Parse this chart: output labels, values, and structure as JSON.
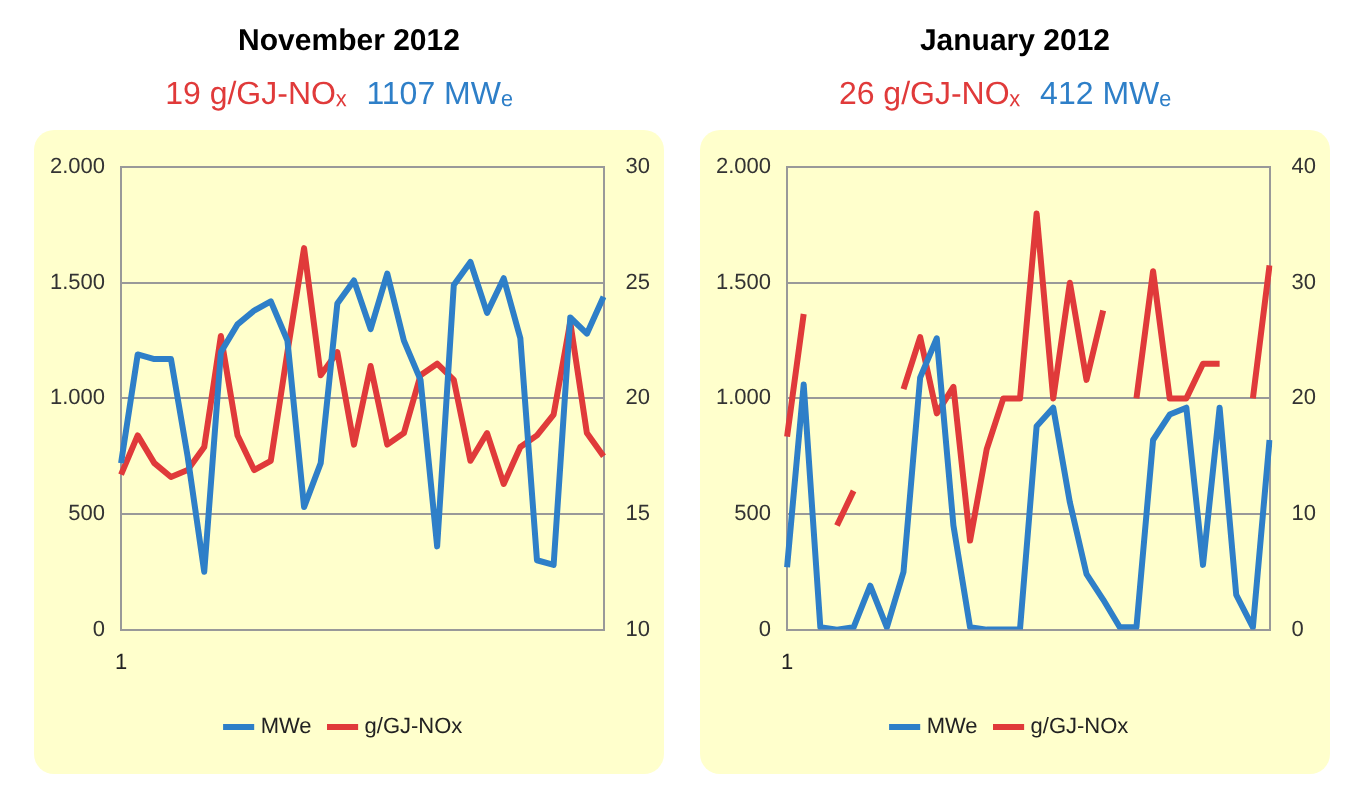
{
  "chart_data": [
    {
      "type": "line",
      "title": "November 2012",
      "annotations": [
        "19 g/GJ-NOₓ",
        "1107 MWₑ"
      ],
      "categories": [
        "1",
        null,
        null,
        null,
        null,
        null,
        null,
        null,
        null,
        null,
        null,
        null,
        null,
        null,
        null,
        null,
        null,
        null,
        null,
        null,
        null,
        null,
        null,
        null,
        null,
        null,
        null,
        null,
        null,
        null
      ],
      "series": [
        {
          "name": "MWe",
          "color": "#2e7fc8",
          "values": [
            720,
            1190,
            1170,
            1170,
            750,
            250,
            1200,
            1320,
            1380,
            1420,
            1250,
            530,
            720,
            1410,
            1510,
            1300,
            1540,
            1250,
            1080,
            360,
            1490,
            1590,
            1370,
            1520,
            1260,
            300,
            280,
            1350,
            1280,
            1440
          ]
        },
        {
          "name": "g/GJ-NOx",
          "color": "#e03a3a",
          "axis": "y2",
          "values": [
            16.7,
            18.4,
            17.2,
            16.6,
            16.9,
            17.9,
            22.7,
            18.4,
            16.9,
            17.3,
            22,
            26.5,
            21,
            22,
            18,
            21.4,
            18,
            18.5,
            21,
            21.5,
            20.8,
            17.3,
            18.5,
            16.3,
            17.9,
            18.4,
            19.3,
            23.3,
            18.5,
            17.5
          ]
        }
      ],
      "ylim": [
        0,
        2000
      ],
      "yticks": [
        0,
        {
          "value": 500,
          "label": "500"
        },
        {
          "value": 1000,
          "label": "1.000"
        },
        {
          "value": 1500,
          "label": "1.500"
        },
        {
          "value": 2000,
          "label": "2.000"
        }
      ],
      "y2lim": [
        10,
        30
      ],
      "y2ticks": [
        10,
        15,
        20,
        25,
        30
      ],
      "grid": "y",
      "legend": "bottom",
      "marker": "none"
    },
    {
      "type": "line",
      "title": "January 2012",
      "annotations": [
        "26  g/GJ-NOₓ",
        "412 MWₑ"
      ],
      "categories": [
        "1",
        null,
        null,
        null,
        null,
        null,
        null,
        null,
        null,
        null,
        null,
        null,
        null,
        null,
        null,
        null,
        null,
        null,
        null,
        null,
        null,
        null,
        null,
        null,
        null,
        null,
        null,
        null,
        null,
        null
      ],
      "series": [
        {
          "name": "MWe",
          "color": "#2e7fc8",
          "values": [
            270,
            1060,
            10,
            0,
            10,
            190,
            10,
            250,
            1090,
            1260,
            450,
            10,
            0,
            0,
            0,
            880,
            960,
            550,
            240,
            130,
            10,
            10,
            820,
            930,
            960,
            280,
            960,
            150,
            10,
            820
          ]
        },
        {
          "name": "g/GJ-NOx",
          "color": "#e03a3a",
          "axis": "y2",
          "values": [
            16.7,
            27.3,
            null,
            9,
            12,
            null,
            null,
            20.8,
            25.3,
            18.7,
            21,
            7.7,
            15.6,
            20,
            20,
            36,
            20,
            30,
            21.6,
            27.6,
            null,
            20,
            31,
            20,
            20,
            23,
            23,
            null,
            20,
            31.5
          ]
        }
      ],
      "ylim": [
        0,
        2000
      ],
      "yticks": [
        0,
        {
          "value": 500,
          "label": "500"
        },
        {
          "value": 1000,
          "label": "1.000"
        },
        {
          "value": 1500,
          "label": "1.500"
        },
        {
          "value": 2000,
          "label": "2.000"
        }
      ],
      "y2lim": [
        0,
        40
      ],
      "y2ticks": [
        0,
        10,
        20,
        30,
        40
      ],
      "grid": "y",
      "legend": "bottom",
      "marker": "none"
    }
  ]
}
